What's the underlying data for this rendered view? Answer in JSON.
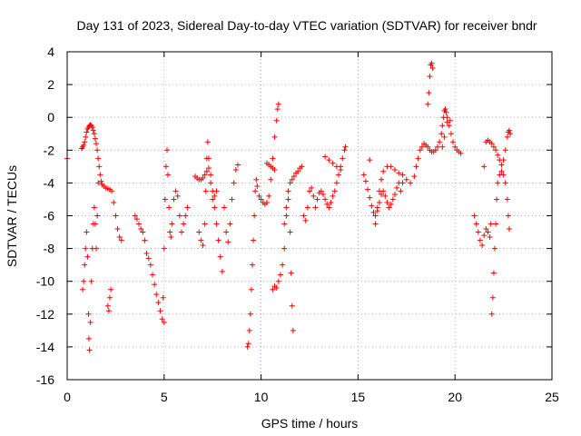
{
  "chart_data": {
    "type": "scatter",
    "title": "Day 131 of 2023, Sidereal Day-to-day VTEC variation (SDTVAR) for receiver bndr",
    "xlabel": "GPS time / hours",
    "ylabel": "SDTVAR / TECUs",
    "xlim": [
      0,
      25
    ],
    "ylim": [
      -16,
      4
    ],
    "xticks": [
      0,
      5,
      10,
      15,
      20,
      25
    ],
    "yticks": [
      -16,
      -14,
      -12,
      -10,
      -8,
      -6,
      -4,
      -2,
      0,
      2,
      4
    ],
    "grid": true,
    "marker": "+",
    "color": "#ff0000",
    "series": [
      {
        "name": "SDTVAR",
        "points": [
          [
            0.0,
            -2.5
          ],
          [
            0.75,
            -1.9
          ],
          [
            0.8,
            -1.8
          ],
          [
            0.85,
            -1.7
          ],
          [
            0.9,
            -1.5
          ],
          [
            0.95,
            -1.2
          ],
          [
            1.0,
            -0.9
          ],
          [
            1.05,
            -0.7
          ],
          [
            1.1,
            -0.6
          ],
          [
            1.15,
            -0.5
          ],
          [
            1.2,
            -0.45
          ],
          [
            1.25,
            -0.5
          ],
          [
            1.3,
            -0.6
          ],
          [
            1.35,
            -0.8
          ],
          [
            1.4,
            -1.0
          ],
          [
            1.45,
            -1.3
          ],
          [
            1.5,
            -1.6
          ],
          [
            1.55,
            -2.0
          ],
          [
            1.6,
            -2.5
          ],
          [
            1.65,
            -3.0
          ],
          [
            1.7,
            -3.5
          ],
          [
            1.75,
            -3.9
          ],
          [
            1.8,
            -4.1
          ],
          [
            1.9,
            -4.2
          ],
          [
            2.0,
            -4.3
          ],
          [
            2.1,
            -4.35
          ],
          [
            2.2,
            -4.4
          ],
          [
            2.3,
            -4.5
          ],
          [
            2.4,
            -5.2
          ],
          [
            2.5,
            -6.0
          ],
          [
            2.6,
            -6.8
          ],
          [
            2.7,
            -7.3
          ],
          [
            2.8,
            -7.5
          ],
          [
            0.8,
            -10.5
          ],
          [
            0.85,
            -10.0
          ],
          [
            0.9,
            -9.0
          ],
          [
            0.95,
            -8.0
          ],
          [
            1.0,
            -7.0
          ],
          [
            1.05,
            -8.5
          ],
          [
            1.1,
            -12.0
          ],
          [
            1.12,
            -13.5
          ],
          [
            1.15,
            -14.2
          ],
          [
            1.2,
            -12.5
          ],
          [
            1.25,
            -10.0
          ],
          [
            1.3,
            -8.0
          ],
          [
            1.35,
            -6.5
          ],
          [
            1.4,
            -5.5
          ],
          [
            1.45,
            -6.5
          ],
          [
            1.5,
            -8.0
          ],
          [
            1.55,
            -6.0
          ],
          [
            1.6,
            -4.0
          ],
          [
            2.1,
            -11.5
          ],
          [
            2.15,
            -11.8
          ],
          [
            2.2,
            -11.0
          ],
          [
            2.25,
            -10.5
          ],
          [
            3.5,
            -6.0
          ],
          [
            3.6,
            -6.2
          ],
          [
            3.7,
            -6.5
          ],
          [
            3.8,
            -6.8
          ],
          [
            3.9,
            -7.0
          ],
          [
            4.0,
            -7.5
          ],
          [
            4.1,
            -8.3
          ],
          [
            4.2,
            -8.6
          ],
          [
            4.3,
            -9.0
          ],
          [
            4.4,
            -9.6
          ],
          [
            4.5,
            -10.2
          ],
          [
            4.6,
            -10.8
          ],
          [
            4.7,
            -11.3
          ],
          [
            4.8,
            -11.8
          ],
          [
            4.9,
            -12.3
          ],
          [
            5.0,
            -12.5
          ],
          [
            4.95,
            -11.0
          ],
          [
            5.0,
            -8.0
          ],
          [
            5.05,
            -5.0
          ],
          [
            5.1,
            -3.0
          ],
          [
            5.15,
            -2.0
          ],
          [
            5.2,
            -3.5
          ],
          [
            5.25,
            -5.5
          ],
          [
            5.3,
            -7.0
          ],
          [
            5.35,
            -7.3
          ],
          [
            5.4,
            -6.5
          ],
          [
            5.5,
            -5.0
          ],
          [
            5.6,
            -4.5
          ],
          [
            5.7,
            -4.8
          ],
          [
            5.8,
            -6.0
          ],
          [
            5.9,
            -7.0
          ],
          [
            6.0,
            -6.5
          ],
          [
            6.1,
            -6.0
          ],
          [
            6.2,
            -5.5
          ],
          [
            6.6,
            -3.6
          ],
          [
            6.7,
            -3.7
          ],
          [
            6.8,
            -3.8
          ],
          [
            6.9,
            -3.8
          ],
          [
            7.0,
            -3.7
          ],
          [
            7.1,
            -3.5
          ],
          [
            7.2,
            -3.3
          ],
          [
            7.3,
            -3.1
          ],
          [
            7.4,
            -3.5
          ],
          [
            7.5,
            -4.5
          ],
          [
            7.6,
            -5.5
          ],
          [
            7.7,
            -6.5
          ],
          [
            7.8,
            -7.5
          ],
          [
            7.9,
            -8.5
          ],
          [
            8.0,
            -9.4
          ],
          [
            6.8,
            -7.0
          ],
          [
            6.9,
            -7.5
          ],
          [
            7.0,
            -7.8
          ],
          [
            7.1,
            -6.5
          ],
          [
            7.15,
            -4.5
          ],
          [
            7.2,
            -2.5
          ],
          [
            7.25,
            -1.5
          ],
          [
            7.3,
            -2.5
          ],
          [
            7.4,
            -4.0
          ],
          [
            7.5,
            -5.0
          ],
          [
            7.6,
            -4.8
          ],
          [
            7.7,
            -4.5
          ],
          [
            8.1,
            -5.5
          ],
          [
            8.2,
            -7.0
          ],
          [
            8.3,
            -7.6
          ],
          [
            8.4,
            -6.5
          ],
          [
            8.5,
            -5.0
          ],
          [
            8.6,
            -4.0
          ],
          [
            8.7,
            -3.2
          ],
          [
            8.8,
            -2.9
          ],
          [
            9.3,
            -14.0
          ],
          [
            9.35,
            -13.8
          ],
          [
            9.4,
            -13.0
          ],
          [
            9.45,
            -12.0
          ],
          [
            9.5,
            -10.5
          ],
          [
            9.55,
            -9.0
          ],
          [
            9.6,
            -7.5
          ],
          [
            9.65,
            -6.0
          ],
          [
            9.7,
            -4.5
          ],
          [
            9.75,
            -3.8
          ],
          [
            9.8,
            -4.2
          ],
          [
            9.9,
            -4.8
          ],
          [
            10.0,
            -5.0
          ],
          [
            10.1,
            -5.2
          ],
          [
            10.2,
            -5.3
          ],
          [
            10.3,
            -5.2
          ],
          [
            10.4,
            -4.8
          ],
          [
            10.5,
            -3.8
          ],
          [
            10.6,
            -2.5
          ],
          [
            10.7,
            -1.2
          ],
          [
            10.8,
            -0.2
          ],
          [
            10.85,
            0.5
          ],
          [
            10.9,
            0.8
          ],
          [
            10.3,
            -2.8
          ],
          [
            10.4,
            -2.9
          ],
          [
            10.5,
            -3.0
          ],
          [
            10.6,
            -3.1
          ],
          [
            10.7,
            -3.2
          ],
          [
            10.6,
            -10.5
          ],
          [
            10.7,
            -10.3
          ],
          [
            10.8,
            -10.4
          ],
          [
            10.9,
            -10.0
          ],
          [
            11.0,
            -9.6
          ],
          [
            11.1,
            -9.0
          ],
          [
            11.2,
            -8.0
          ],
          [
            11.3,
            -6.0
          ],
          [
            11.4,
            -5.0
          ],
          [
            11.5,
            -7.0
          ],
          [
            11.55,
            -9.5
          ],
          [
            11.6,
            -11.5
          ],
          [
            11.65,
            -13.0
          ],
          [
            11.2,
            -6.5
          ],
          [
            11.3,
            -5.5
          ],
          [
            11.4,
            -4.5
          ],
          [
            11.5,
            -4.0
          ],
          [
            11.6,
            -3.8
          ],
          [
            11.7,
            -3.6
          ],
          [
            11.8,
            -3.4
          ],
          [
            11.9,
            -3.3
          ],
          [
            12.0,
            -3.1
          ],
          [
            12.1,
            -3.0
          ],
          [
            12.2,
            -6.0
          ],
          [
            12.3,
            -6.3
          ],
          [
            12.4,
            -5.5
          ],
          [
            12.5,
            -4.5
          ],
          [
            12.6,
            -4.3
          ],
          [
            12.7,
            -4.8
          ],
          [
            12.8,
            -5.5
          ],
          [
            12.9,
            -5.0
          ],
          [
            13.0,
            -4.6
          ],
          [
            13.1,
            -4.5
          ],
          [
            13.2,
            -4.7
          ],
          [
            13.3,
            -5.0
          ],
          [
            13.4,
            -5.3
          ],
          [
            13.5,
            -5.5
          ],
          [
            13.6,
            -5.2
          ],
          [
            13.7,
            -4.8
          ],
          [
            13.8,
            -4.5
          ],
          [
            13.9,
            -4.0
          ],
          [
            14.0,
            -3.5
          ],
          [
            14.1,
            -3.0
          ],
          [
            14.2,
            -2.5
          ],
          [
            14.3,
            -2.0
          ],
          [
            14.35,
            -1.8
          ],
          [
            13.3,
            -2.4
          ],
          [
            13.5,
            -2.6
          ],
          [
            13.7,
            -2.8
          ],
          [
            13.9,
            -3.0
          ],
          [
            14.1,
            -3.2
          ],
          [
            15.3,
            -3.5
          ],
          [
            15.4,
            -3.9
          ],
          [
            15.5,
            -4.4
          ],
          [
            15.6,
            -4.9
          ],
          [
            15.7,
            -5.4
          ],
          [
            15.8,
            -5.8
          ],
          [
            15.9,
            -6.0
          ],
          [
            16.0,
            -5.7
          ],
          [
            16.1,
            -5.2
          ],
          [
            16.2,
            -4.7
          ],
          [
            16.3,
            -4.5
          ],
          [
            16.4,
            -4.8
          ],
          [
            16.5,
            -5.2
          ],
          [
            16.6,
            -5.5
          ],
          [
            16.7,
            -5.3
          ],
          [
            16.8,
            -5.0
          ],
          [
            16.9,
            -4.7
          ],
          [
            17.0,
            -4.3
          ],
          [
            17.1,
            -4.0
          ],
          [
            17.2,
            -4.5
          ],
          [
            17.3,
            -4.0
          ],
          [
            15.6,
            -2.6
          ],
          [
            15.9,
            -6.5
          ],
          [
            16.0,
            -5.5
          ],
          [
            16.1,
            -4.5
          ],
          [
            16.2,
            -3.8
          ],
          [
            16.3,
            -3.3
          ],
          [
            16.5,
            -3.0
          ],
          [
            16.7,
            -3.0
          ],
          [
            16.9,
            -3.2
          ],
          [
            17.1,
            -3.4
          ],
          [
            17.3,
            -3.5
          ],
          [
            17.5,
            -3.8
          ],
          [
            17.7,
            -4.0
          ],
          [
            17.9,
            -3.6
          ],
          [
            18.0,
            -3.0
          ],
          [
            18.1,
            -2.5
          ],
          [
            18.2,
            -2.0
          ],
          [
            18.3,
            -1.8
          ],
          [
            18.4,
            -1.6
          ],
          [
            18.5,
            -1.7
          ],
          [
            18.6,
            -1.8
          ],
          [
            18.7,
            -2.0
          ],
          [
            18.8,
            -2.1
          ],
          [
            18.9,
            -2.1
          ],
          [
            19.0,
            -2.0
          ],
          [
            19.1,
            -1.8
          ],
          [
            19.2,
            -1.5
          ],
          [
            19.3,
            -1.0
          ],
          [
            19.35,
            -0.5
          ],
          [
            19.4,
            0.0
          ],
          [
            19.45,
            0.4
          ],
          [
            19.5,
            0.5
          ],
          [
            19.55,
            0.3
          ],
          [
            19.6,
            0.0
          ],
          [
            19.7,
            -0.5
          ],
          [
            19.8,
            -1.0
          ],
          [
            19.9,
            -1.5
          ],
          [
            20.0,
            -1.8
          ],
          [
            20.1,
            -2.0
          ],
          [
            20.2,
            -2.1
          ],
          [
            20.3,
            -2.2
          ],
          [
            18.6,
            0.8
          ],
          [
            18.65,
            1.5
          ],
          [
            18.7,
            2.5
          ],
          [
            18.75,
            3.2
          ],
          [
            18.8,
            3.3
          ],
          [
            18.85,
            3.0
          ],
          [
            19.35,
            -1.8
          ],
          [
            19.45,
            -1.2
          ],
          [
            19.6,
            -0.3
          ],
          [
            19.75,
            -0.2
          ],
          [
            21.0,
            -6.0
          ],
          [
            21.1,
            -6.5
          ],
          [
            21.2,
            -7.0
          ],
          [
            21.3,
            -7.5
          ],
          [
            21.4,
            -7.8
          ],
          [
            21.5,
            -7.2
          ],
          [
            21.6,
            -6.8
          ],
          [
            21.7,
            -7.0
          ],
          [
            21.8,
            -7.3
          ],
          [
            21.85,
            -6.5
          ],
          [
            21.5,
            -3.0
          ],
          [
            21.6,
            -1.5
          ],
          [
            21.7,
            -1.4
          ],
          [
            21.8,
            -1.5
          ],
          [
            21.9,
            -1.6
          ],
          [
            22.0,
            -1.8
          ],
          [
            22.1,
            -2.0
          ],
          [
            22.2,
            -2.3
          ],
          [
            22.3,
            -2.6
          ],
          [
            22.4,
            -2.9
          ],
          [
            22.5,
            -2.6
          ],
          [
            22.6,
            -2.0
          ],
          [
            22.7,
            -1.2
          ],
          [
            22.75,
            -0.9
          ],
          [
            22.8,
            -0.8
          ],
          [
            22.85,
            -1.0
          ],
          [
            21.9,
            -12.0
          ],
          [
            21.95,
            -11.0
          ],
          [
            22.0,
            -9.5
          ],
          [
            22.05,
            -8.0
          ],
          [
            22.1,
            -6.5
          ],
          [
            22.15,
            -5.0
          ],
          [
            22.2,
            -4.0
          ],
          [
            22.3,
            -3.5
          ],
          [
            22.4,
            -3.3
          ],
          [
            22.5,
            -3.5
          ],
          [
            22.6,
            -4.0
          ],
          [
            22.7,
            -5.0
          ],
          [
            22.75,
            -6.0
          ],
          [
            22.8,
            -6.8
          ]
        ]
      }
    ]
  }
}
